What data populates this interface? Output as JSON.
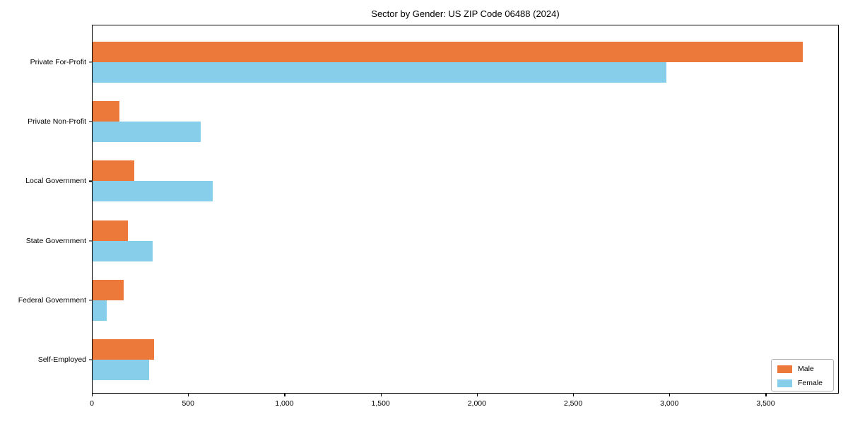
{
  "page": {
    "background": "#ffffff",
    "text_color": "#000000"
  },
  "chart_data": {
    "type": "bar",
    "orientation": "horizontal",
    "title": "Sector by Gender: US ZIP Code 06488 (2024)",
    "categories": [
      "Private For-Profit",
      "Private Non-Profit",
      "Local Government",
      "State Government",
      "Federal Government",
      "Self-Employed"
    ],
    "series": [
      {
        "name": "Male",
        "color": "#EC783A",
        "values": [
          3690,
          138,
          215,
          182,
          160,
          320
        ]
      },
      {
        "name": "Female",
        "color": "#87CEEB",
        "values": [
          2980,
          560,
          625,
          312,
          75,
          292
        ]
      }
    ],
    "xlabel": "",
    "ylabel": "",
    "xlim": [
      0,
      3880
    ],
    "xticks": [
      0,
      500,
      1000,
      1500,
      2000,
      2500,
      3000,
      3500
    ],
    "xtick_labels": [
      "0",
      "500",
      "1,000",
      "1,500",
      "2,000",
      "2,500",
      "3,000",
      "3,500"
    ],
    "grid": false,
    "legend": {
      "position": "lower-right",
      "entries": [
        "Male",
        "Female"
      ]
    }
  }
}
